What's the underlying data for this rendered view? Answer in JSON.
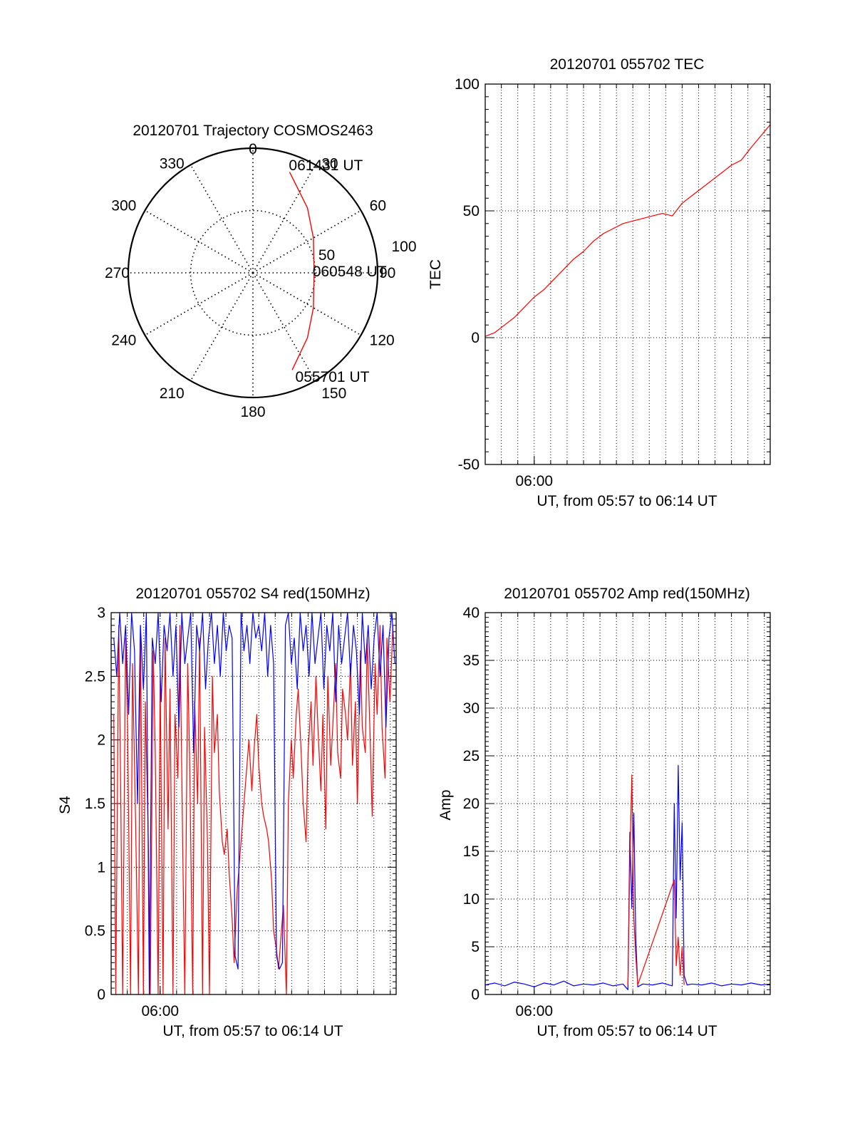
{
  "colors": {
    "red": "#ff0000",
    "blue": "#0000ff",
    "axis": "#000000",
    "grid": "#000000"
  },
  "chart_data": [
    {
      "id": "trajectory",
      "type": "polar",
      "title": "20120701 Trajectory COSMOS2463",
      "azimuth_labels": [
        "0",
        "30",
        "60",
        "90",
        "120",
        "150",
        "180",
        "210",
        "240",
        "270",
        "300",
        "330"
      ],
      "radius_labels": [
        "50",
        "100"
      ],
      "radius_max": 100,
      "grid": true,
      "track": [
        {
          "az": 20,
          "r": 86
        },
        {
          "az": 40,
          "r": 68
        },
        {
          "az": 60,
          "r": 56
        },
        {
          "az": 90,
          "r": 49
        },
        {
          "az": 120,
          "r": 56
        },
        {
          "az": 140,
          "r": 68
        },
        {
          "az": 158,
          "r": 84
        }
      ],
      "time_labels": [
        {
          "text": "061431 UT",
          "az": 19,
          "r": 92
        },
        {
          "text": "060548 UT",
          "az": 88,
          "r": 49
        },
        {
          "text": "055701 UT",
          "az": 157,
          "r": 90
        }
      ]
    },
    {
      "id": "tec",
      "type": "line",
      "title": "20120701 055702 TEC",
      "ylabel": "TEC",
      "xlabel": "UT, from 05:57 to 06:14 UT",
      "xticks": [
        {
          "value": 6.0,
          "label": "06:00"
        }
      ],
      "xlim": [
        5.9503,
        6.2393
      ],
      "ylim": [
        -50,
        100
      ],
      "yticks": [
        -50,
        0,
        50,
        100
      ],
      "grid": true,
      "series": [
        {
          "color": "red",
          "x": [
            5.9503,
            5.96,
            5.97,
            5.98,
            5.99,
            6.0,
            6.01,
            6.02,
            6.03,
            6.04,
            6.05,
            6.06,
            6.07,
            6.08,
            6.09,
            6.1,
            6.11,
            6.12,
            6.13,
            6.14,
            6.15,
            6.16,
            6.17,
            6.18,
            6.19,
            6.2,
            6.21,
            6.22,
            6.2393
          ],
          "y": [
            0.5,
            2,
            5,
            8,
            12,
            16,
            19,
            23,
            27,
            31,
            34,
            38,
            41,
            43,
            45,
            46,
            47,
            48,
            49,
            48,
            53,
            56,
            59,
            62,
            65,
            68,
            70,
            75,
            84
          ]
        }
      ]
    },
    {
      "id": "s4",
      "type": "line",
      "title": "20120701 055702 S4 red(150MHz)",
      "ylabel": "S4",
      "xlabel": "UT, from 05:57 to 06:14 UT",
      "xticks": [
        {
          "value": 6.0,
          "label": "06:00"
        }
      ],
      "xlim": [
        5.9503,
        6.2393
      ],
      "ylim": [
        0,
        3
      ],
      "yticks": [
        "0",
        "0.5",
        "1",
        "1.5",
        "2",
        "2.5",
        "3"
      ],
      "grid": true,
      "series": [
        {
          "color": "red",
          "x": [
            5.953,
            5.955,
            5.958,
            5.96,
            5.962,
            5.965,
            5.967,
            5.97,
            5.972,
            5.975,
            5.978,
            5.98,
            5.983,
            5.985,
            5.988,
            5.99,
            5.993,
            5.995,
            5.998,
            6.0,
            6.003,
            6.005,
            6.008,
            6.01,
            6.013,
            6.015,
            6.018,
            6.02,
            6.023,
            6.025,
            6.028,
            6.03,
            6.033,
            6.035,
            6.038,
            6.04,
            6.043,
            6.045,
            6.048,
            6.05,
            6.053,
            6.055,
            6.058,
            6.06,
            6.063,
            6.065,
            6.068,
            6.07,
            6.073,
            6.075,
            6.078,
            6.08,
            6.083,
            6.085,
            6.088,
            6.09,
            6.093,
            6.095,
            6.098,
            6.1,
            6.103,
            6.105,
            6.108,
            6.11,
            6.113,
            6.115,
            6.118,
            6.12,
            6.123,
            6.125,
            6.128,
            6.13,
            6.133,
            6.135,
            6.138,
            6.14,
            6.143,
            6.145,
            6.148,
            6.15,
            6.153,
            6.155,
            6.158,
            6.16,
            6.163,
            6.165,
            6.168,
            6.17,
            6.173,
            6.175,
            6.178,
            6.18,
            6.183,
            6.185,
            6.188,
            6.19,
            6.193,
            6.195,
            6.198,
            6.2,
            6.203,
            6.205,
            6.208,
            6.21,
            6.213,
            6.215,
            6.218,
            6.22,
            6.223,
            6.225,
            6.228,
            6.23,
            6.233,
            6.236
          ],
          "y": [
            2.2,
            0,
            2.9,
            1.6,
            0,
            2.8,
            2.1,
            0,
            2.6,
            1.4,
            0,
            2.9,
            0,
            2.3,
            1.2,
            0,
            2.7,
            1.9,
            0,
            2.5,
            0,
            2.8,
            1.3,
            2.4,
            0,
            2.2,
            1.7,
            2.9,
            1.1,
            0,
            2.6,
            1.8,
            0,
            2.3,
            1.5,
            2.8,
            0,
            2.1,
            1.2,
            0,
            2.5,
            1.9,
            2.2,
            1.6,
            1.2,
            1.1,
            1.3,
            0.95,
            0.6,
            0.25,
            0.8,
            1.0,
            1.3,
            1.5,
            1.8,
            2.0,
            1.6,
            1.9,
            2.2,
            1.8,
            1.5,
            1.4,
            1.3,
            1.2,
            0.9,
            0.5,
            0.35,
            0.2,
            0.5,
            0.7,
            0,
            1.5,
            2.0,
            1.7,
            2.2,
            2.4,
            1.9,
            1.5,
            1.2,
            1.9,
            2.3,
            1.8,
            2.5,
            2.1,
            1.6,
            2.2,
            1.3,
            2.5,
            1.8,
            2.1,
            2.6,
            1.9,
            1.7,
            2.4,
            2.2,
            2.0,
            2.6,
            1.8,
            2.3,
            1.5,
            2.7,
            2.1,
            1.9,
            2.8,
            2.0,
            1.4,
            2.6,
            2.2,
            2.9,
            2.1,
            1.7,
            2.8,
            2.3,
            2.9
          ]
        },
        {
          "color": "blue",
          "x": [
            5.953,
            5.956,
            5.959,
            5.962,
            5.965,
            5.968,
            5.971,
            5.974,
            5.977,
            5.98,
            5.983,
            5.986,
            5.989,
            5.992,
            5.995,
            5.998,
            6.001,
            6.004,
            6.007,
            6.01,
            6.013,
            6.016,
            6.019,
            6.022,
            6.025,
            6.028,
            6.031,
            6.034,
            6.037,
            6.04,
            6.043,
            6.046,
            6.049,
            6.052,
            6.055,
            6.058,
            6.061,
            6.064,
            6.067,
            6.07,
            6.073,
            6.076,
            6.079,
            6.082,
            6.085,
            6.088,
            6.091,
            6.094,
            6.097,
            6.1,
            6.103,
            6.106,
            6.109,
            6.112,
            6.115,
            6.118,
            6.121,
            6.124,
            6.127,
            6.13,
            6.133,
            6.136,
            6.139,
            6.142,
            6.145,
            6.148,
            6.151,
            6.154,
            6.157,
            6.16,
            6.163,
            6.166,
            6.169,
            6.172,
            6.175,
            6.178,
            6.181,
            6.184,
            6.187,
            6.19,
            6.193,
            6.196,
            6.199,
            6.202,
            6.205,
            6.208,
            6.211,
            6.214,
            6.217,
            6.22,
            6.223,
            6.226,
            6.229,
            6.232,
            6.235,
            6.238
          ],
          "y": [
            2.8,
            2.5,
            3.0,
            2.6,
            2.9,
            2.2,
            3.0,
            2.7,
            1.5,
            2.9,
            2.4,
            3.0,
            0,
            2.8,
            2.6,
            3.0,
            2.3,
            2.9,
            2.7,
            3.0,
            2.5,
            2.9,
            2.1,
            3.0,
            2.6,
            2.8,
            3.0,
            1.9,
            2.9,
            2.7,
            3.0,
            2.4,
            2.8,
            3.0,
            2.6,
            2.9,
            2.5,
            3.0,
            2.7,
            2.9,
            2.8,
            0.3,
            0.2,
            3.0,
            2.7,
            2.9,
            2.6,
            3.0,
            2.8,
            2.9,
            2.7,
            3.0,
            2.5,
            2.9,
            2.6,
            0.3,
            0.2,
            0.25,
            2.9,
            3.0,
            2.6,
            2.8,
            2.4,
            3.0,
            2.7,
            2.9,
            2.5,
            3.0,
            2.6,
            2.8,
            3.0,
            2.4,
            2.9,
            2.7,
            3.0,
            2.3,
            2.9,
            2.6,
            2.8,
            3.0,
            2.5,
            2.9,
            2.7,
            2.2,
            3.0,
            2.6,
            2.9,
            2.4,
            2.8,
            3.0,
            2.5,
            2.9,
            2.1,
            2.8,
            3.0,
            2.6
          ]
        }
      ]
    },
    {
      "id": "amp",
      "type": "line",
      "title": "20120701 055702 Amp red(150MHz)",
      "ylabel": "Amp",
      "xlabel": "UT, from 05:57 to 06:14 UT",
      "xticks": [
        {
          "value": 6.0,
          "label": "06:00"
        }
      ],
      "xlim": [
        5.9503,
        6.2393
      ],
      "ylim": [
        0,
        40
      ],
      "yticks": [
        "0",
        "5",
        "10",
        "15",
        "20",
        "25",
        "30",
        "35",
        "40"
      ],
      "grid": true,
      "series": [
        {
          "color": "blue",
          "x": [
            5.9503,
            5.96,
            5.97,
            5.98,
            5.99,
            6.0,
            6.01,
            6.02,
            6.03,
            6.04,
            6.05,
            6.06,
            6.07,
            6.08,
            6.09,
            6.095,
            6.097,
            6.099,
            6.101,
            6.103,
            6.105,
            6.11,
            6.12,
            6.13,
            6.14,
            6.142,
            6.144,
            6.146,
            6.148,
            6.15,
            6.152,
            6.155,
            6.16,
            6.17,
            6.18,
            6.19,
            6.2,
            6.21,
            6.22,
            6.23,
            6.2393
          ],
          "y": [
            1.0,
            1.2,
            0.9,
            1.3,
            1.1,
            0.8,
            1.2,
            1.0,
            1.4,
            0.9,
            1.1,
            1.0,
            1.2,
            0.9,
            1.1,
            0.5,
            17.0,
            9.0,
            19.0,
            6.0,
            0.8,
            1.1,
            1.0,
            1.2,
            0.9,
            20.0,
            8.0,
            24.0,
            12.0,
            18.0,
            2.0,
            1.0,
            1.1,
            1.0,
            1.2,
            0.9,
            1.1,
            1.0,
            1.2,
            1.0,
            1.1
          ]
        },
        {
          "color": "red",
          "x": [
            6.095,
            6.097,
            6.099,
            6.101,
            6.103,
            6.105,
            6.142,
            6.144,
            6.146,
            6.148,
            6.15,
            6.152
          ],
          "y": [
            1.0,
            14.0,
            23.0,
            8.0,
            4.0,
            1.0,
            12.0,
            3.0,
            6.0,
            2.0,
            5.0,
            1.0
          ]
        }
      ]
    }
  ]
}
